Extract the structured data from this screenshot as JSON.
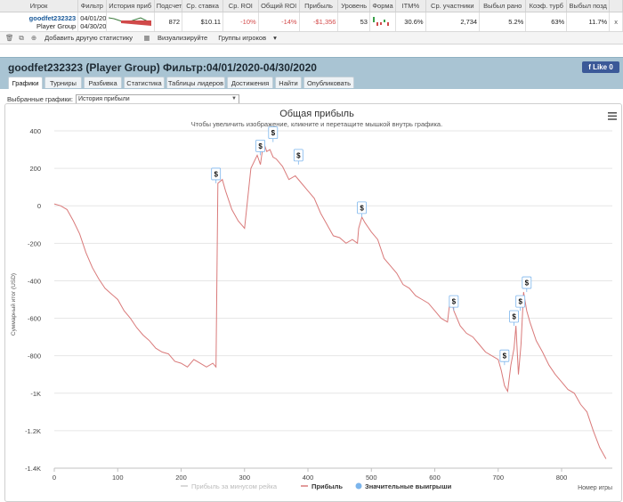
{
  "stats_table": {
    "headers": [
      "Игрок",
      "Фильтр",
      "История приб",
      "Подсчет",
      "Ср. ставка",
      "Ср. ROI",
      "Общий ROI",
      "Прибыль",
      "Уровень",
      "Форма",
      "ITM%",
      "Ср. участники",
      "Выбыл рано",
      "Коэф. турб",
      "Выбыл позд"
    ],
    "row": {
      "player_name": "goodfet232323",
      "player_group": "Player Group",
      "filter_from": "04/01/20",
      "filter_to": "04/30/20",
      "count": "872",
      "avg_stake": "$10.11",
      "avg_roi": "-10%",
      "total_roi": "-14%",
      "profit": "-$1,356",
      "level": "53",
      "itm": "30.6%",
      "avg_entrants": "2,734",
      "early_bust": "5.2%",
      "turbo_ratio": "63%",
      "late_bust": "11.7%",
      "close": "x"
    }
  },
  "toolbar": {
    "add_stat": "Добавить другую статистику",
    "visualize": "Визуализируйте",
    "groups": "Группы игроков"
  },
  "header": {
    "title": "goodfet232323 (Player Group) Фильтр:04/01/2020-04/30/2020",
    "like_label": "Like 0"
  },
  "tabs": [
    "Графики",
    "Турниры",
    "Разбивка",
    "Статистика",
    "Таблицы лидеров",
    "Достижения",
    "Найти",
    "Опубликовать"
  ],
  "graph_selector": {
    "label": "Выбранные графики:",
    "value": "История прибыли"
  },
  "chart_data": {
    "type": "line",
    "title": "Общая прибыль",
    "subtitle": "Чтобы увеличить изображение, кликните и перетащите мышкой внутрь графика.",
    "ylabel": "Суммарный итог (USD)",
    "xlabel": "Номер игры",
    "xlim": [
      0,
      880
    ],
    "ylim": [
      -1400,
      400
    ],
    "x_ticks": [
      "0",
      "100",
      "200",
      "300",
      "400",
      "500",
      "600",
      "700",
      "800"
    ],
    "y_ticks": [
      "400",
      "200",
      "0",
      "-200",
      "-400",
      "-600",
      "-800",
      "-1K",
      "-1.2K",
      "-1.4K"
    ],
    "legend": [
      "Прибыль за минусом рейка",
      "Прибыль",
      "Значительные выигрыши"
    ],
    "series": [
      {
        "name": "Прибыль",
        "color": "#d97a7a",
        "x": [
          0,
          10,
          20,
          30,
          40,
          50,
          60,
          70,
          80,
          90,
          100,
          110,
          120,
          130,
          140,
          150,
          160,
          170,
          180,
          190,
          200,
          210,
          220,
          230,
          240,
          250,
          255,
          258,
          265,
          270,
          280,
          290,
          300,
          310,
          320,
          325,
          330,
          335,
          340,
          345,
          350,
          360,
          370,
          380,
          390,
          400,
          410,
          420,
          430,
          440,
          450,
          460,
          470,
          478,
          480,
          485,
          490,
          500,
          510,
          520,
          530,
          540,
          550,
          560,
          570,
          580,
          590,
          600,
          610,
          620,
          625,
          630,
          640,
          650,
          660,
          670,
          680,
          690,
          700,
          705,
          710,
          715,
          720,
          725,
          728,
          732,
          736,
          740,
          745,
          750,
          760,
          770,
          780,
          790,
          800,
          810,
          820,
          830,
          840,
          850,
          860,
          870
        ],
        "y": [
          10,
          0,
          -20,
          -80,
          -150,
          -250,
          -330,
          -390,
          -440,
          -470,
          -500,
          -560,
          -600,
          -650,
          -690,
          -720,
          -760,
          -780,
          -790,
          -830,
          -840,
          -860,
          -820,
          -840,
          -860,
          -840,
          -860,
          120,
          140,
          80,
          -20,
          -80,
          -120,
          200,
          270,
          220,
          340,
          290,
          300,
          260,
          250,
          210,
          140,
          160,
          120,
          80,
          40,
          -40,
          -100,
          -160,
          -170,
          -200,
          -180,
          -200,
          -120,
          -60,
          -90,
          -140,
          -180,
          -280,
          -320,
          -360,
          -420,
          -440,
          -480,
          -500,
          -520,
          -560,
          -600,
          -620,
          -480,
          -560,
          -640,
          -680,
          -700,
          -740,
          -780,
          -800,
          -820,
          -880,
          -960,
          -990,
          -850,
          -760,
          -640,
          -900,
          -740,
          -460,
          -560,
          -620,
          -720,
          -780,
          -850,
          -900,
          -940,
          -980,
          -1000,
          -1060,
          -1100,
          -1200,
          -1290,
          -1350
        ]
      }
    ],
    "big_wins": [
      {
        "x": 255,
        "y": 120
      },
      {
        "x": 325,
        "y": 270
      },
      {
        "x": 345,
        "y": 340
      },
      {
        "x": 385,
        "y": 220
      },
      {
        "x": 485,
        "y": -60
      },
      {
        "x": 630,
        "y": -560
      },
      {
        "x": 710,
        "y": -850
      },
      {
        "x": 725,
        "y": -640
      },
      {
        "x": 735,
        "y": -560
      },
      {
        "x": 745,
        "y": -460
      }
    ],
    "big_win_symbol": "$",
    "grid": "horizontal",
    "legend_position": "bottom"
  }
}
